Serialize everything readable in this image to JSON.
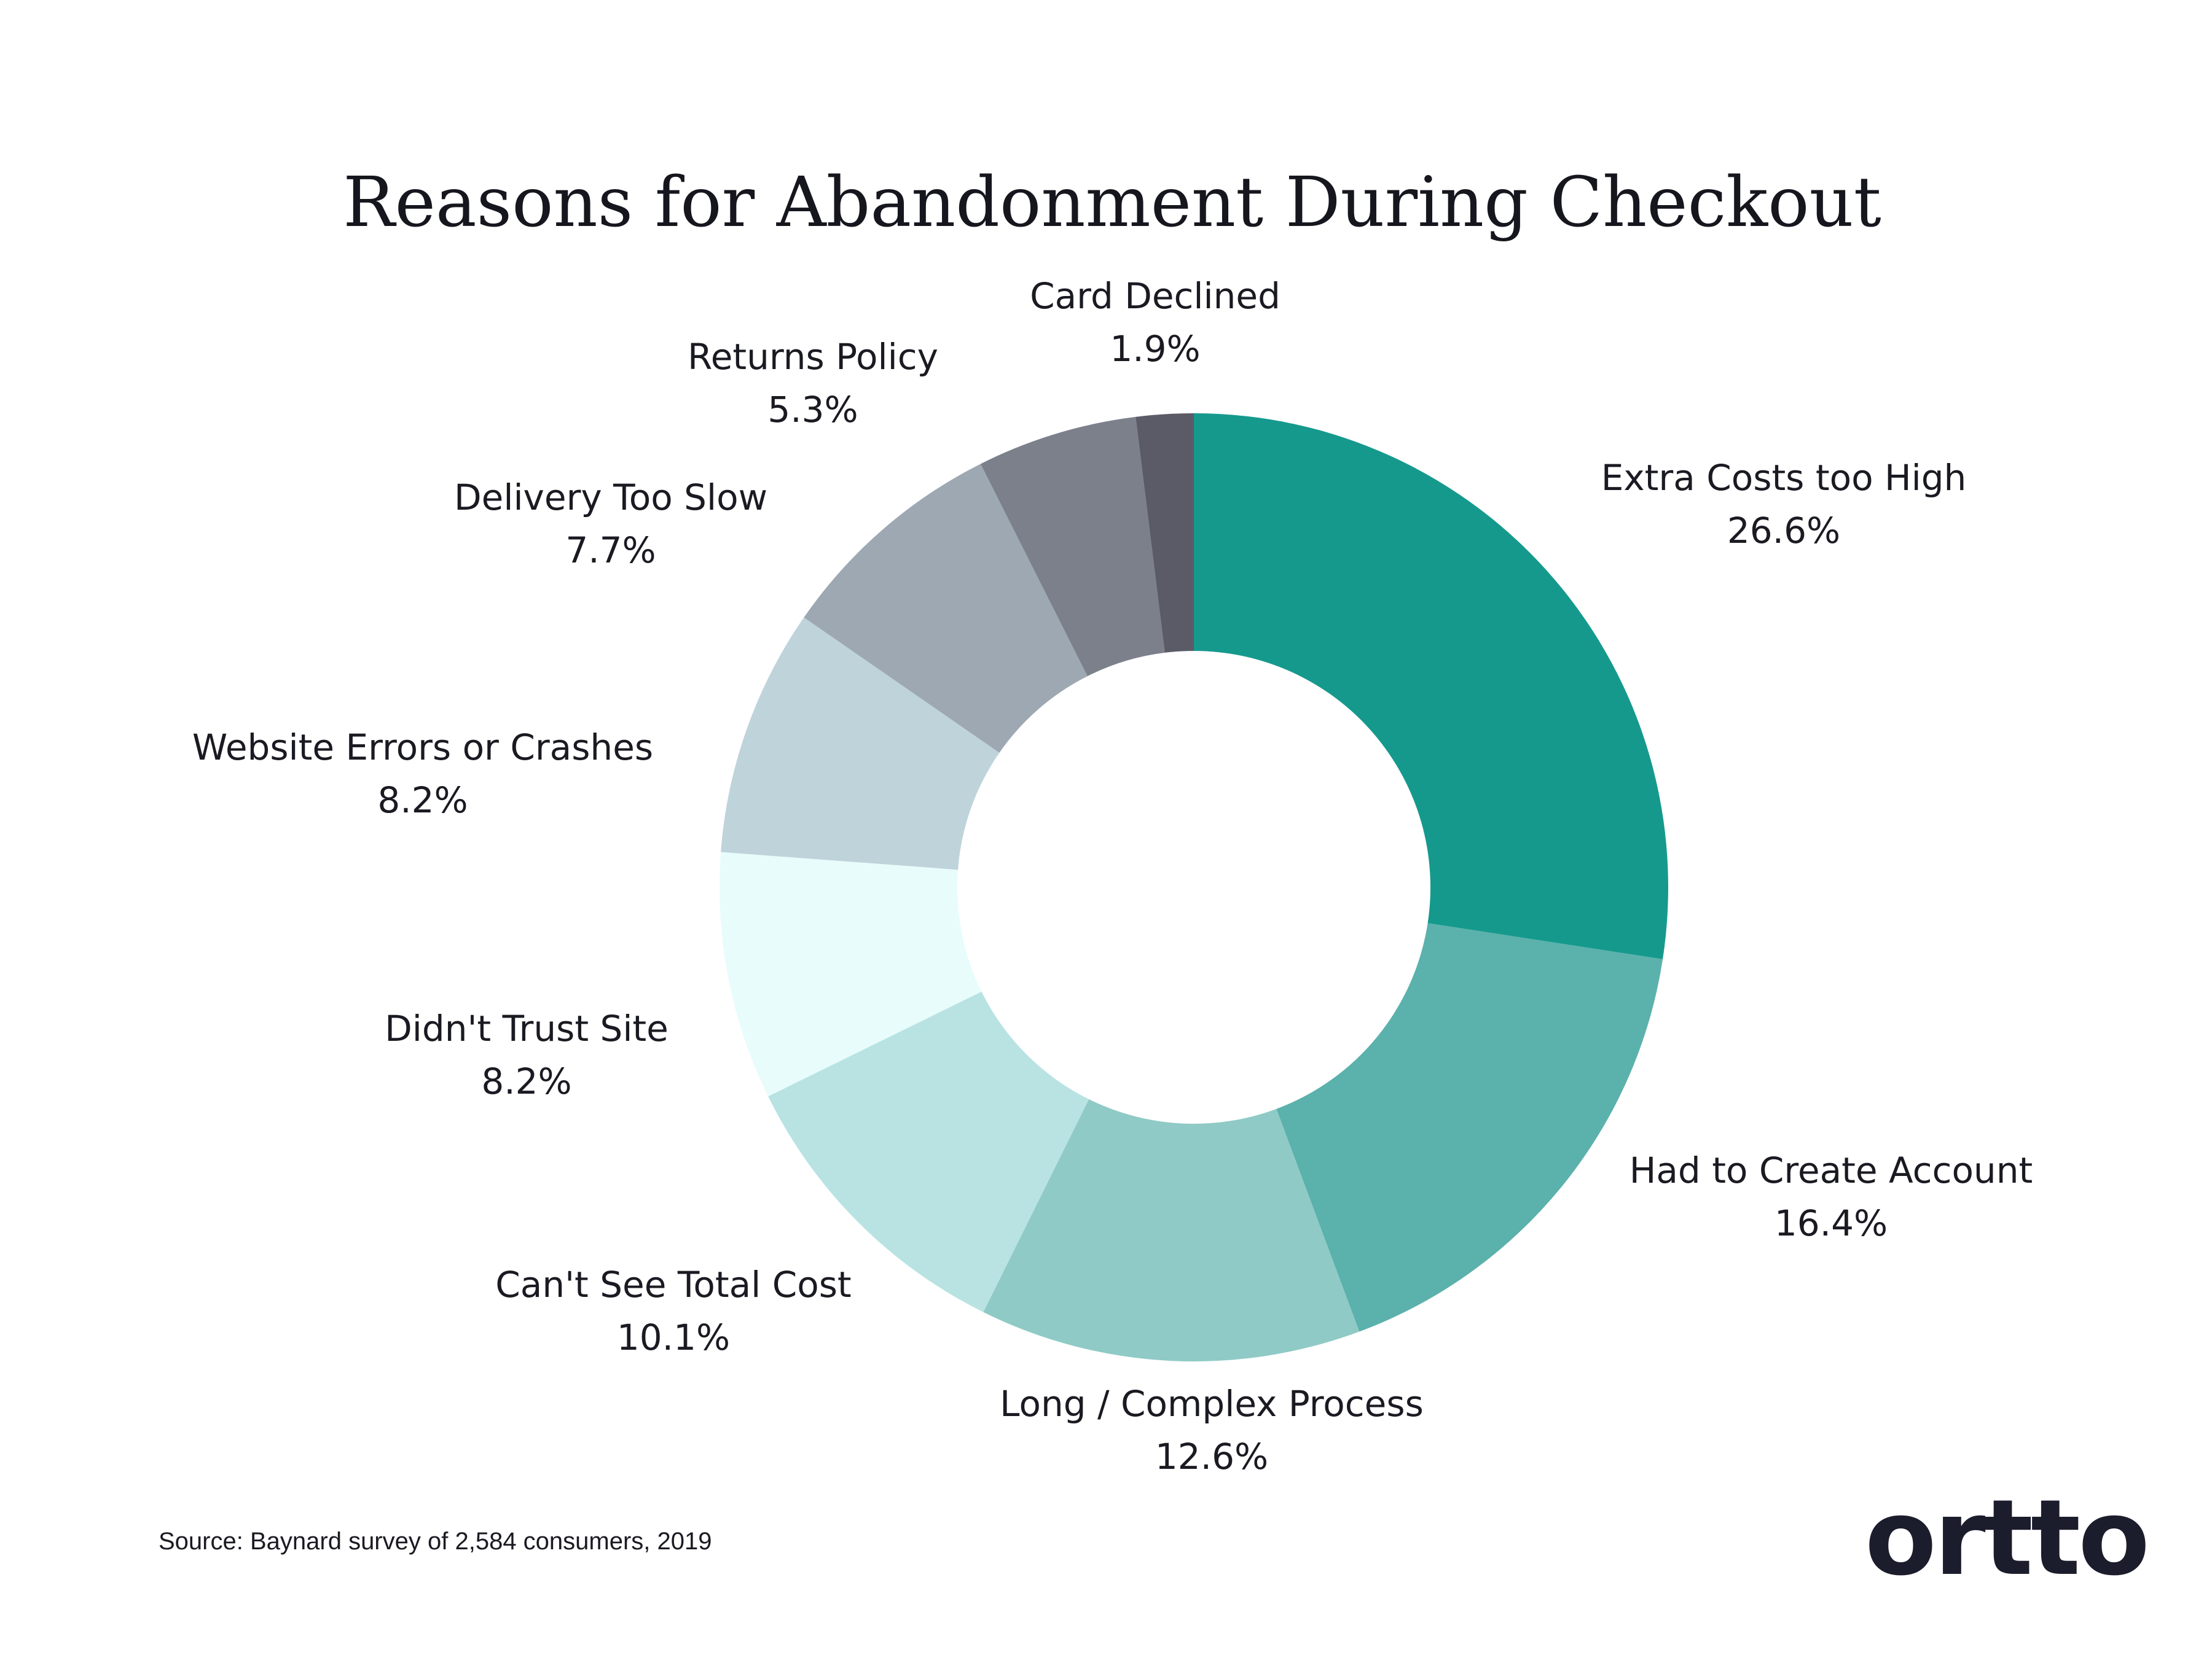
{
  "chart_data": {
    "type": "pie",
    "style": "donut",
    "title": "Reasons for Abandonment During Checkout",
    "categories": [
      "Extra Costs too High",
      "Had to Create Account",
      "Long / Complex Process",
      "Can't See Total Cost",
      "Didn't Trust Site",
      "Website Errors or Crashes",
      "Delivery Too Slow",
      "Returns Policy",
      "Card Declined"
    ],
    "values": [
      26.6,
      16.4,
      12.6,
      10.1,
      8.2,
      8.2,
      7.7,
      5.3,
      1.9
    ],
    "value_labels": [
      "26.6%",
      "16.4%",
      "12.6%",
      "10.1%",
      "8.2%",
      "8.2%",
      "7.7%",
      "5.3%",
      "1.9%"
    ],
    "colors": [
      "#16998d",
      "#5bb1ab",
      "#8fcac6",
      "#b9e3e3",
      "#e8fcfc",
      "#bfd3db",
      "#9da8b2",
      "#7b808b",
      "#5b5b68",
      "#888190"
    ],
    "legend": "none"
  },
  "source": "Source:  Baynard survey of 2,584 consumers, 2019",
  "logo": "ortto"
}
